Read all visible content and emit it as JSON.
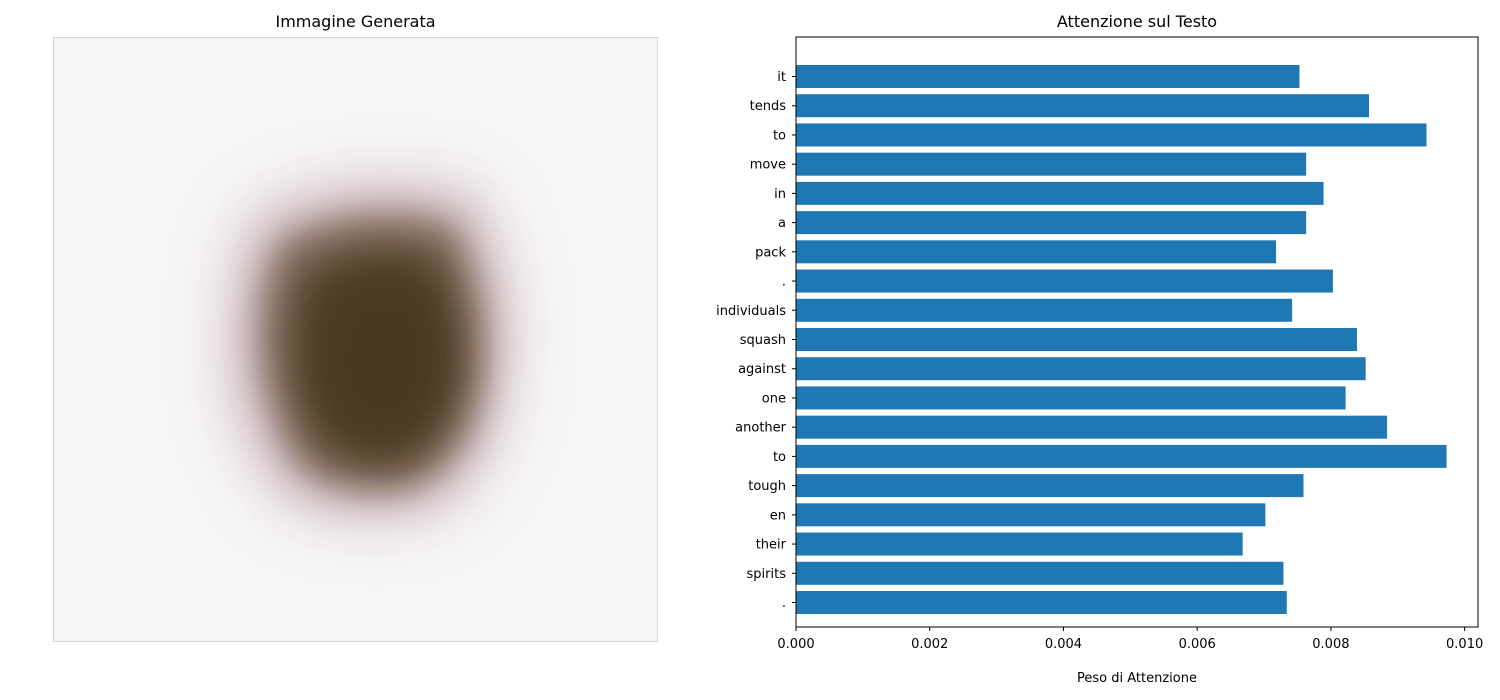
{
  "left_panel": {
    "title": "Immagine Generata"
  },
  "chart_data": {
    "type": "bar",
    "orientation": "horizontal",
    "title": "Attenzione sul Testo",
    "xlabel": "Peso di Attenzione",
    "ylabel": "",
    "xlim": [
      0,
      0.0102
    ],
    "xticks": [
      0.0,
      0.002,
      0.004,
      0.006,
      0.008,
      0.01
    ],
    "xtick_labels": [
      "0.000",
      "0.002",
      "0.004",
      "0.006",
      "0.008",
      "0.010"
    ],
    "grid": false,
    "bar_color": "#1f77b4",
    "categories": [
      "it",
      "tends",
      "to",
      "move",
      "in",
      "a",
      "pack",
      ".",
      "individuals",
      "squash",
      "against",
      "one",
      "another",
      "to",
      "tough",
      "en",
      "their",
      "spirits",
      "."
    ],
    "values": [
      0.00753,
      0.00857,
      0.00943,
      0.00763,
      0.00789,
      0.00763,
      0.00718,
      0.00803,
      0.00742,
      0.00839,
      0.00852,
      0.00822,
      0.00884,
      0.00973,
      0.00759,
      0.00702,
      0.00668,
      0.00729,
      0.00734
    ]
  }
}
